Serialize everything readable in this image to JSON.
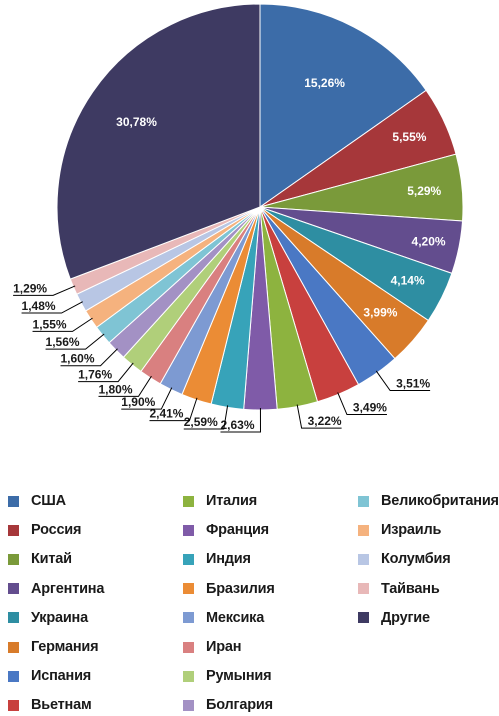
{
  "chart_data": {
    "type": "pie",
    "title": "",
    "series": [
      {
        "name": "США",
        "value": 15.26,
        "label": "15,26%",
        "color": "#3C6CA8"
      },
      {
        "name": "Россия",
        "value": 5.55,
        "label": "5,55%",
        "color": "#A6373A"
      },
      {
        "name": "Китай",
        "value": 5.29,
        "label": "5,29%",
        "color": "#7A9A3A"
      },
      {
        "name": "Аргентина",
        "value": 4.2,
        "label": "4,20%",
        "color": "#634D8E"
      },
      {
        "name": "Украина",
        "value": 4.14,
        "label": "4,14%",
        "color": "#2E8EA2"
      },
      {
        "name": "Германия",
        "value": 3.99,
        "label": "3,99%",
        "color": "#D87B2A"
      },
      {
        "name": "Испания",
        "value": 3.51,
        "label": "3,51%",
        "color": "#4A78C4"
      },
      {
        "name": "Вьетнам",
        "value": 3.49,
        "label": "3,49%",
        "color": "#C8403E"
      },
      {
        "name": "Италия",
        "value": 3.22,
        "label": "3,22%",
        "color": "#8DB33F"
      },
      {
        "name": "Франция",
        "value": 2.63,
        "label": "2,63%",
        "color": "#7F5BA8"
      },
      {
        "name": "Индия",
        "value": 2.59,
        "label": "2,59%",
        "color": "#37A3B9"
      },
      {
        "name": "Бразилия",
        "value": 2.41,
        "label": "2,41%",
        "color": "#EB8C35"
      },
      {
        "name": "Мексика",
        "value": 1.9,
        "label": "1,90%",
        "color": "#7D9AD2"
      },
      {
        "name": "Иран",
        "value": 1.8,
        "label": "1,80%",
        "color": "#D98080"
      },
      {
        "name": "Румыния",
        "value": 1.76,
        "label": "1,76%",
        "color": "#B0CF7A"
      },
      {
        "name": "Болгария",
        "value": 1.6,
        "label": "1,60%",
        "color": "#A391C4"
      },
      {
        "name": "Великобритания",
        "value": 1.56,
        "label": "1,56%",
        "color": "#7FC4D4"
      },
      {
        "name": "Израиль",
        "value": 1.55,
        "label": "1,55%",
        "color": "#F5B27E"
      },
      {
        "name": "Колумбия",
        "value": 1.48,
        "label": "1,48%",
        "color": "#B8C6E4"
      },
      {
        "name": "Тайвань",
        "value": 1.29,
        "label": "1,29%",
        "color": "#E8B8B8"
      },
      {
        "name": "Другие",
        "value": 30.78,
        "label": "30,78%",
        "color": "#3E3A62"
      }
    ],
    "start_angle_deg": 0,
    "direction": "clockwise",
    "legend_position": "bottom"
  }
}
